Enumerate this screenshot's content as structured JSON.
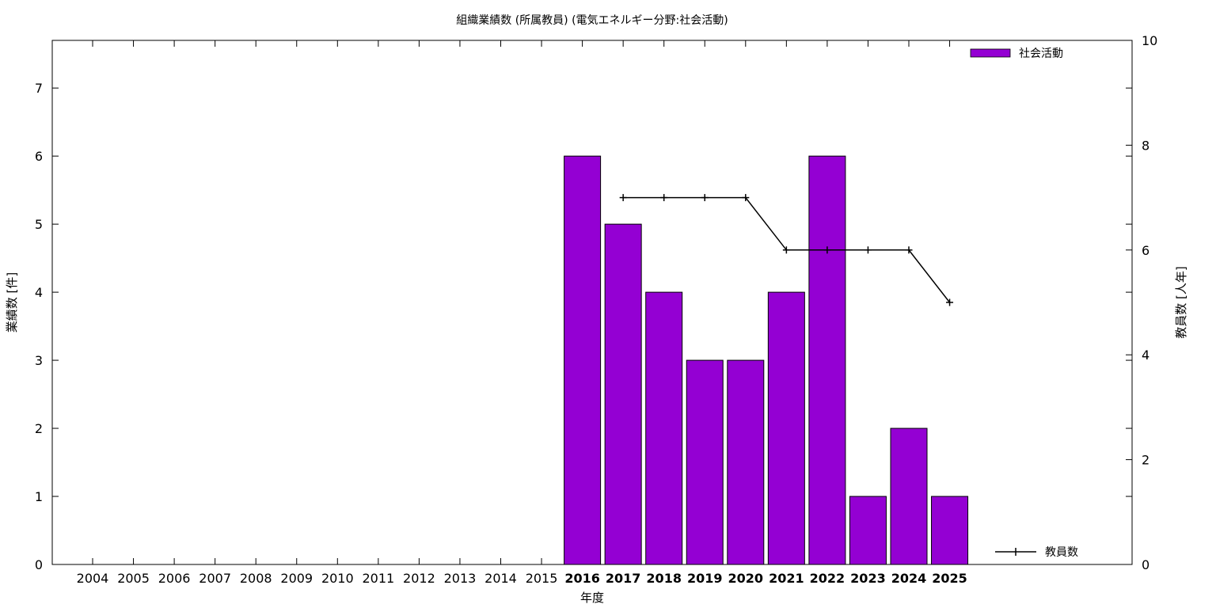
{
  "chart_data": {
    "type": "bar",
    "title": "組織業績数 (所属教員) (電気エネルギー分野:社会活動)",
    "xlabel": "年度",
    "ylabel": "業績数 [件]",
    "y2label": "教員数 [人年]",
    "categories": [
      "2004",
      "2005",
      "2006",
      "2007",
      "2008",
      "2009",
      "2010",
      "2011",
      "2012",
      "2013",
      "2014",
      "2015",
      "2016",
      "2017",
      "2018",
      "2019",
      "2020",
      "2021",
      "2022",
      "2023",
      "2024",
      "2025"
    ],
    "bold_categories": [
      "2016",
      "2017",
      "2018",
      "2019",
      "2020",
      "2021",
      "2022",
      "2023",
      "2024",
      "2025"
    ],
    "ylim": [
      0,
      7.7
    ],
    "yticks": [
      0,
      1,
      2,
      3,
      4,
      5,
      6,
      7
    ],
    "y2lim": [
      0,
      10
    ],
    "y2ticks": [
      0,
      2,
      4,
      6,
      8,
      10
    ],
    "series": [
      {
        "name": "社会活動",
        "kind": "bar",
        "axis": "left",
        "color": "#9400d3",
        "values": [
          0,
          0,
          0,
          0,
          0,
          0,
          0,
          0,
          0,
          0,
          0,
          0,
          6,
          5,
          4,
          3,
          3,
          4,
          6,
          1,
          2,
          1
        ]
      },
      {
        "name": "教員数",
        "kind": "line",
        "axis": "right",
        "color": "#000000",
        "values": [
          null,
          null,
          null,
          null,
          null,
          null,
          null,
          null,
          null,
          null,
          null,
          null,
          null,
          7,
          7,
          7,
          7,
          6,
          6,
          6,
          6,
          5
        ]
      }
    ],
    "legend": "top-right (bars), bottom-right (line)",
    "grid": false
  }
}
